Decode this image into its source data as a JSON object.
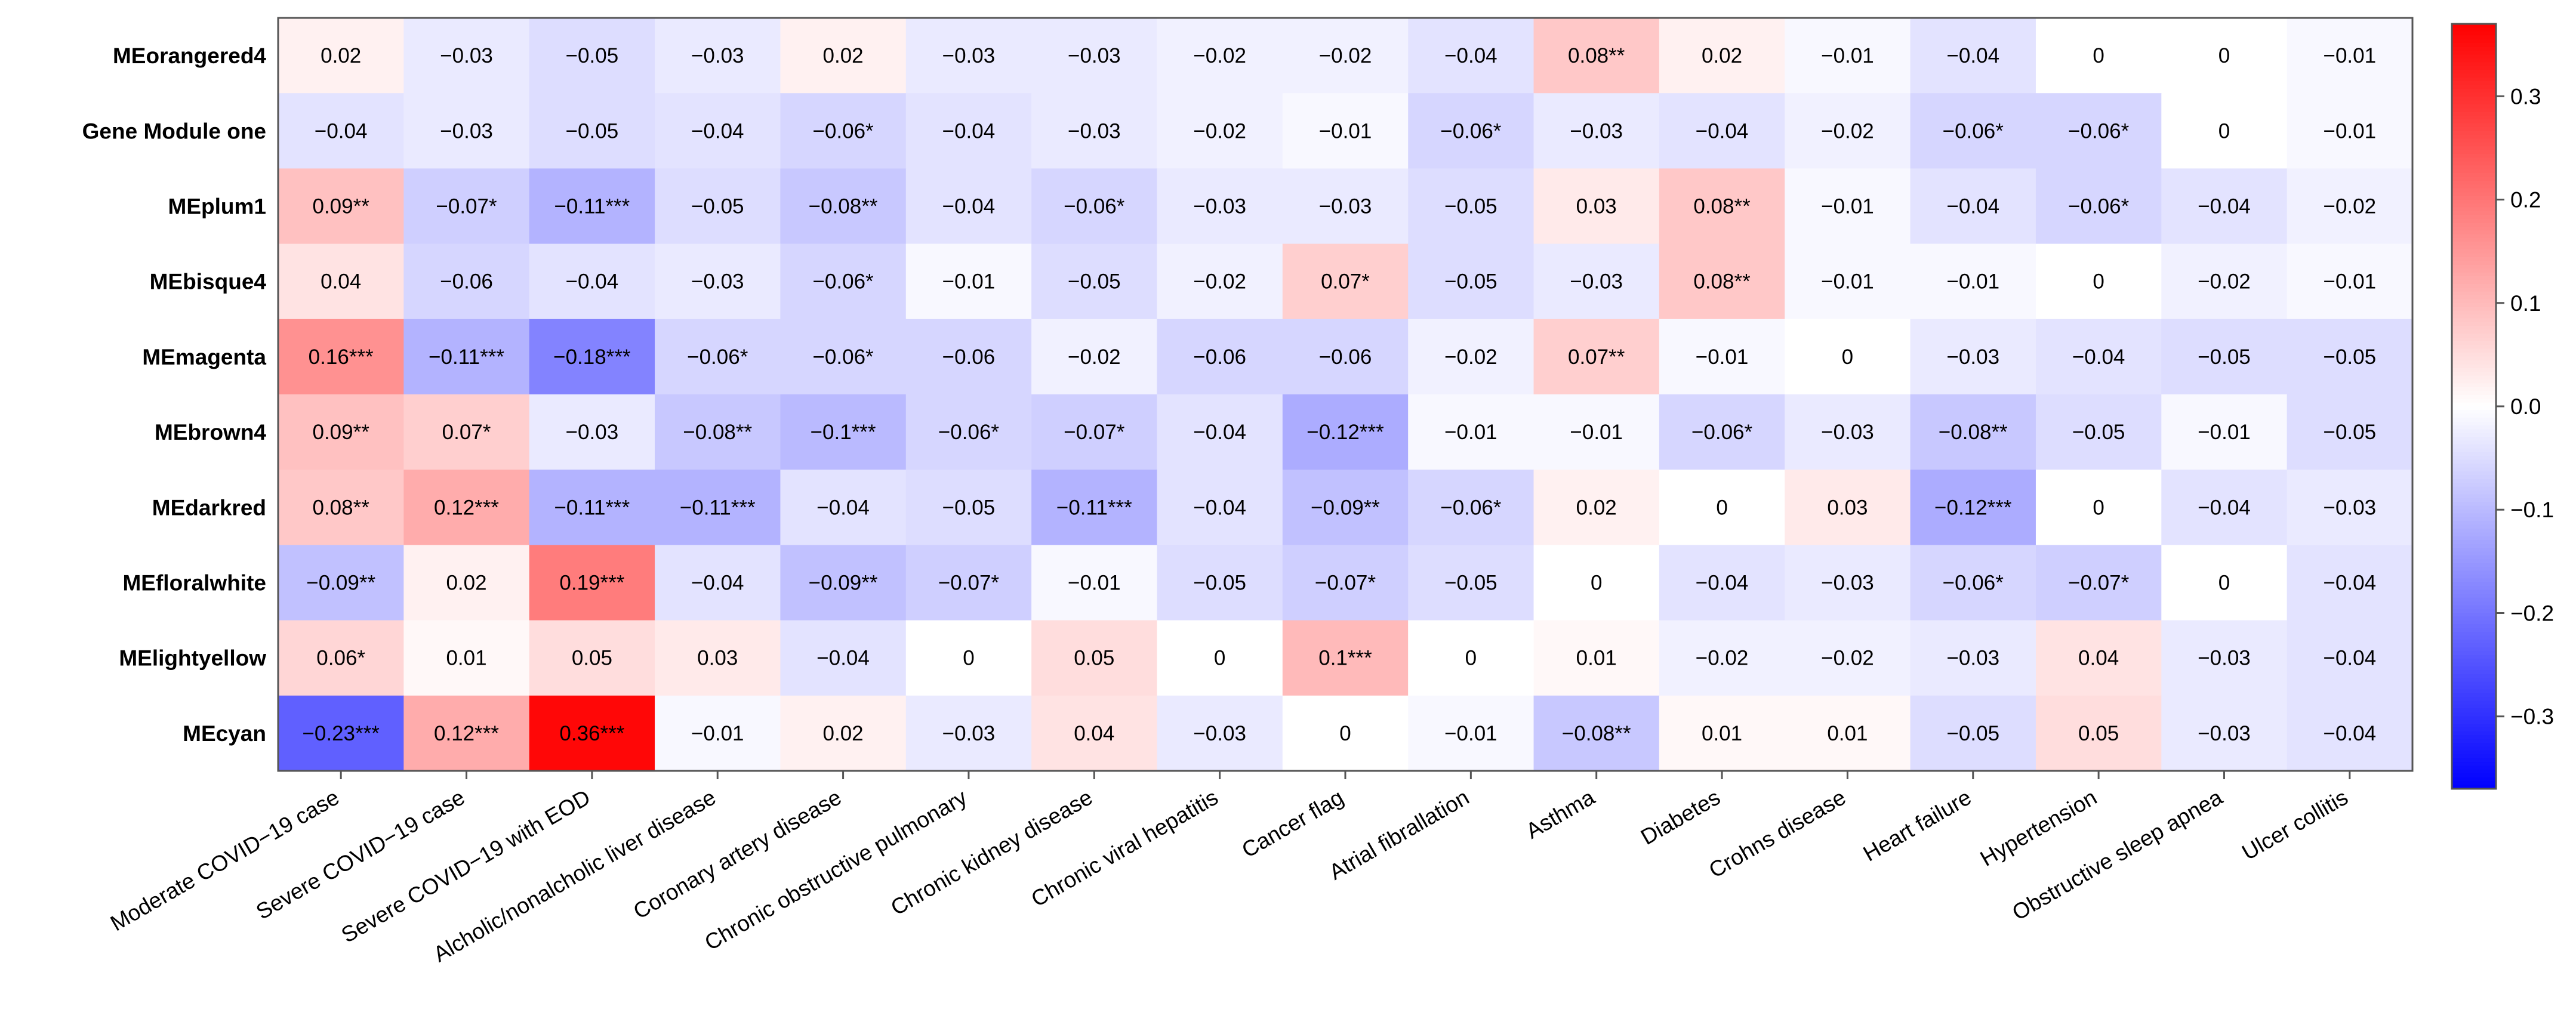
{
  "chart_data": {
    "type": "heatmap",
    "rows": [
      "MEorangered4",
      "Gene Module one",
      "MEplum1",
      "MEbisque4",
      "MEmagenta",
      "MEbrown4",
      "MEdarkred",
      "MEfloralwhite",
      "MElightyellow",
      "MEcyan"
    ],
    "columns": [
      "Moderate COVID−19 case",
      "Severe COVID−19 case",
      "Severe COVID−19 with EOD",
      "Alcholic/nonalcholic liver disease",
      "Coronary artery disease",
      "Chronic obstructive pulmonary",
      "Chronic kidney disease",
      "Chronic viral hepatitis",
      "Cancer flag",
      "Atrial fibrallation",
      "Asthma",
      "Diabetes",
      "Crohns disease",
      "Heart failure",
      "Hypertension",
      "Obstructive sleep apnea",
      "Ulcer collitis"
    ],
    "values": [
      [
        0.02,
        -0.03,
        -0.05,
        -0.03,
        0.02,
        -0.03,
        -0.03,
        -0.02,
        -0.02,
        -0.04,
        0.08,
        0.02,
        -0.01,
        -0.04,
        0,
        0,
        -0.01
      ],
      [
        -0.04,
        -0.03,
        -0.05,
        -0.04,
        -0.06,
        -0.04,
        -0.03,
        -0.02,
        -0.01,
        -0.06,
        -0.03,
        -0.04,
        -0.02,
        -0.06,
        -0.06,
        0,
        -0.01
      ],
      [
        0.09,
        -0.07,
        -0.11,
        -0.05,
        -0.08,
        -0.04,
        -0.06,
        -0.03,
        -0.03,
        -0.05,
        0.03,
        0.08,
        -0.01,
        -0.04,
        -0.06,
        -0.04,
        -0.02
      ],
      [
        0.04,
        -0.06,
        -0.04,
        -0.03,
        -0.06,
        -0.01,
        -0.05,
        -0.02,
        0.07,
        -0.05,
        -0.03,
        0.08,
        -0.01,
        -0.01,
        0,
        -0.02,
        -0.01
      ],
      [
        0.16,
        -0.11,
        -0.18,
        -0.06,
        -0.06,
        -0.06,
        -0.02,
        -0.06,
        -0.06,
        -0.02,
        0.07,
        -0.01,
        0,
        -0.03,
        -0.04,
        -0.05,
        -0.05
      ],
      [
        0.09,
        0.07,
        -0.03,
        -0.08,
        -0.1,
        -0.06,
        -0.07,
        -0.04,
        -0.12,
        -0.01,
        -0.01,
        -0.06,
        -0.03,
        -0.08,
        -0.05,
        -0.01,
        -0.05
      ],
      [
        0.08,
        0.12,
        -0.11,
        -0.11,
        -0.04,
        -0.05,
        -0.11,
        -0.04,
        -0.09,
        -0.06,
        0.02,
        0,
        0.03,
        -0.12,
        0,
        -0.04,
        -0.03
      ],
      [
        -0.09,
        0.02,
        0.19,
        -0.04,
        -0.09,
        -0.07,
        -0.01,
        -0.05,
        -0.07,
        -0.05,
        0,
        -0.04,
        -0.03,
        -0.06,
        -0.07,
        0,
        -0.04
      ],
      [
        0.06,
        0.01,
        0.05,
        0.03,
        -0.04,
        0,
        0.05,
        0,
        0.1,
        0,
        0.01,
        -0.02,
        -0.02,
        -0.03,
        0.04,
        -0.03,
        -0.04
      ],
      [
        -0.23,
        0.12,
        0.36,
        -0.01,
        0.02,
        -0.03,
        0.04,
        -0.03,
        0,
        -0.01,
        -0.08,
        0.01,
        0.01,
        -0.05,
        0.05,
        -0.03,
        -0.04
      ]
    ],
    "labels": [
      [
        "0.02",
        "−0.03",
        "−0.05",
        "−0.03",
        "0.02",
        "−0.03",
        "−0.03",
        "−0.02",
        "−0.02",
        "−0.04",
        "0.08**",
        "0.02",
        "−0.01",
        "−0.04",
        "0",
        "0",
        "−0.01"
      ],
      [
        "−0.04",
        "−0.03",
        "−0.05",
        "−0.04",
        "−0.06*",
        "−0.04",
        "−0.03",
        "−0.02",
        "−0.01",
        "−0.06*",
        "−0.03",
        "−0.04",
        "−0.02",
        "−0.06*",
        "−0.06*",
        "0",
        "−0.01"
      ],
      [
        "0.09**",
        "−0.07*",
        "−0.11***",
        "−0.05",
        "−0.08**",
        "−0.04",
        "−0.06*",
        "−0.03",
        "−0.03",
        "−0.05",
        "0.03",
        "0.08**",
        "−0.01",
        "−0.04",
        "−0.06*",
        "−0.04",
        "−0.02"
      ],
      [
        "0.04",
        "−0.06",
        "−0.04",
        "−0.03",
        "−0.06*",
        "−0.01",
        "−0.05",
        "−0.02",
        "0.07*",
        "−0.05",
        "−0.03",
        "0.08**",
        "−0.01",
        "−0.01",
        "0",
        "−0.02",
        "−0.01"
      ],
      [
        "0.16***",
        "−0.11***",
        "−0.18***",
        "−0.06*",
        "−0.06*",
        "−0.06",
        "−0.02",
        "−0.06",
        "−0.06",
        "−0.02",
        "0.07**",
        "−0.01",
        "0",
        "−0.03",
        "−0.04",
        "−0.05",
        "−0.05"
      ],
      [
        "0.09**",
        "0.07*",
        "−0.03",
        "−0.08**",
        "−0.1***",
        "−0.06*",
        "−0.07*",
        "−0.04",
        "−0.12***",
        "−0.01",
        "−0.01",
        "−0.06*",
        "−0.03",
        "−0.08**",
        "−0.05",
        "−0.01",
        "−0.05"
      ],
      [
        "0.08**",
        "0.12***",
        "−0.11***",
        "−0.11***",
        "−0.04",
        "−0.05",
        "−0.11***",
        "−0.04",
        "−0.09**",
        "−0.06*",
        "0.02",
        "0",
        "0.03",
        "−0.12***",
        "0",
        "−0.04",
        "−0.03"
      ],
      [
        "−0.09**",
        "0.02",
        "0.19***",
        "−0.04",
        "−0.09**",
        "−0.07*",
        "−0.01",
        "−0.05",
        "−0.07*",
        "−0.05",
        "0",
        "−0.04",
        "−0.03",
        "−0.06*",
        "−0.07*",
        "0",
        "−0.04"
      ],
      [
        "0.06*",
        "0.01",
        "0.05",
        "0.03",
        "−0.04",
        "0",
        "0.05",
        "0",
        "0.1***",
        "0",
        "0.01",
        "−0.02",
        "−0.02",
        "−0.03",
        "0.04",
        "−0.03",
        "−0.04"
      ],
      [
        "−0.23***",
        "0.12***",
        "0.36***",
        "−0.01",
        "0.02",
        "−0.03",
        "0.04",
        "−0.03",
        "0",
        "−0.01",
        "−0.08**",
        "0.01",
        "0.01",
        "−0.05",
        "0.05",
        "−0.03",
        "−0.04"
      ]
    ],
    "colorscale": {
      "min": -0.37,
      "max": 0.37,
      "low_color": "#0000ff",
      "mid_color": "#ffffff",
      "high_color": "#ff0000",
      "ticks": [
        0.3,
        0.2,
        0.1,
        0.0,
        -0.1,
        -0.2,
        -0.3
      ],
      "tick_labels": [
        "0.3",
        "0.2",
        "0.1",
        "0.0",
        "−0.1",
        "−0.2",
        "−0.3"
      ]
    },
    "title": "",
    "xlabel": "",
    "ylabel": "",
    "legend_position": "right"
  }
}
